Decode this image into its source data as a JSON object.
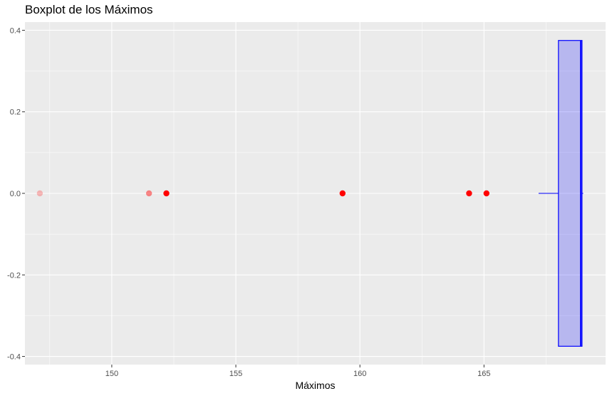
{
  "chart_data": {
    "type": "boxplot",
    "title": "Boxplot de los Máximos",
    "xlabel": "Máximos",
    "ylabel": "",
    "xlim": [
      146.5,
      169.9
    ],
    "ylim": [
      -0.42,
      0.42
    ],
    "x_ticks": [
      150,
      155,
      160,
      165
    ],
    "x_tick_labels": [
      "150",
      "155",
      "160",
      "165"
    ],
    "y_ticks": [
      -0.4,
      -0.2,
      0.0,
      0.2,
      0.4
    ],
    "y_tick_labels": [
      "-0.4",
      "-0.2",
      "0.0",
      "0.2",
      "0.4"
    ],
    "grid": true,
    "box": {
      "whisker_low": 167.2,
      "q1": 168.0,
      "median": 168.9,
      "q3": 168.95,
      "whisker_high": 169.0,
      "ymin": -0.375,
      "ymax": 0.375,
      "fill": "#0000ff",
      "fill_opacity": 0.22,
      "stroke": "#0000ff"
    },
    "outliers": [
      {
        "x": 147.1,
        "y": 0.0,
        "opacity": 0.25
      },
      {
        "x": 151.5,
        "y": 0.0,
        "opacity": 0.45
      },
      {
        "x": 152.2,
        "y": 0.0,
        "opacity": 1.0
      },
      {
        "x": 159.3,
        "y": 0.0,
        "opacity": 1.0
      },
      {
        "x": 164.4,
        "y": 0.0,
        "opacity": 1.0
      },
      {
        "x": 165.1,
        "y": 0.0,
        "opacity": 1.0
      }
    ],
    "outlier_color": "#ff0000",
    "panel_background": "#ebebeb",
    "grid_color": "#ffffff"
  }
}
